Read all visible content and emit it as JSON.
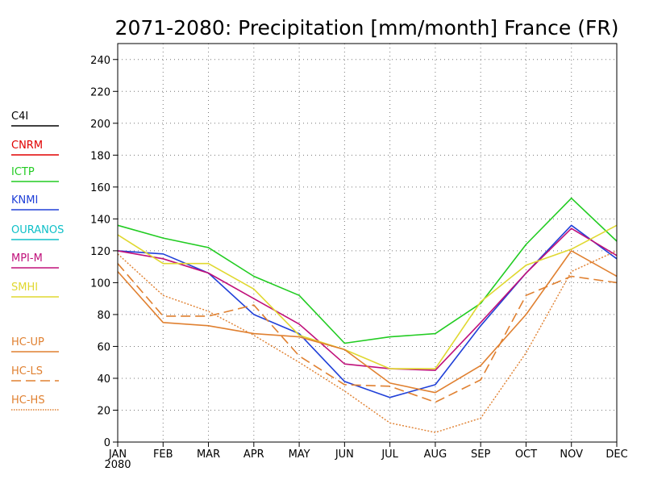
{
  "chart_data": {
    "type": "line",
    "title": "2071-2080: Precipitation [mm/month] France (FR)",
    "xlabel": "",
    "ylabel": "",
    "categories": [
      "JAN",
      "FEB",
      "MAR",
      "APR",
      "MAY",
      "JUN",
      "JUL",
      "AUG",
      "SEP",
      "OCT",
      "NOV",
      "DEC"
    ],
    "year_label": "2080",
    "ylim": [
      0,
      250
    ],
    "yticks": [
      0,
      20,
      40,
      60,
      80,
      100,
      120,
      140,
      160,
      180,
      200,
      220,
      240
    ],
    "grid": true,
    "legend_position": "left",
    "series": [
      {
        "name": "C4I",
        "color": "#000000",
        "dash": "solid",
        "values": null
      },
      {
        "name": "CNRM",
        "color": "#e00000",
        "dash": "solid",
        "values": null
      },
      {
        "name": "ICTP",
        "color": "#22cc22",
        "dash": "solid",
        "values": [
          136,
          128,
          122,
          104,
          92,
          62,
          66,
          68,
          87,
          124,
          153,
          126
        ]
      },
      {
        "name": "KNMI",
        "color": "#2040d8",
        "dash": "solid",
        "values": [
          120,
          118,
          106,
          80,
          68,
          38,
          28,
          36,
          73,
          106,
          136,
          115
        ]
      },
      {
        "name": "OURANOS",
        "color": "#10c0c8",
        "dash": "solid",
        "values": null
      },
      {
        "name": "MPI-M",
        "color": "#c0107a",
        "dash": "solid",
        "values": [
          120,
          115,
          106,
          90,
          74,
          49,
          46,
          45,
          75,
          106,
          134,
          117
        ]
      },
      {
        "name": "SMHI",
        "color": "#e0d830",
        "dash": "solid",
        "values": [
          130,
          112,
          112,
          96,
          67,
          58,
          46,
          46,
          88,
          111,
          121,
          136
        ]
      },
      {
        "name": "HC-UP",
        "color": "#e08030",
        "dash": "solid",
        "values": [
          107,
          75,
          73,
          68,
          66,
          58,
          37,
          31,
          48,
          80,
          120,
          104
        ]
      },
      {
        "name": "HC-LS",
        "color": "#e08030",
        "dash": "dashed",
        "values": [
          112,
          79,
          79,
          86,
          54,
          36,
          35,
          25,
          39,
          92,
          104,
          100
        ]
      },
      {
        "name": "HC-HS",
        "color": "#e08030",
        "dash": "dotted",
        "values": [
          118,
          92,
          82,
          67,
          50,
          32,
          12,
          6,
          15,
          56,
          107,
          120
        ]
      }
    ]
  }
}
